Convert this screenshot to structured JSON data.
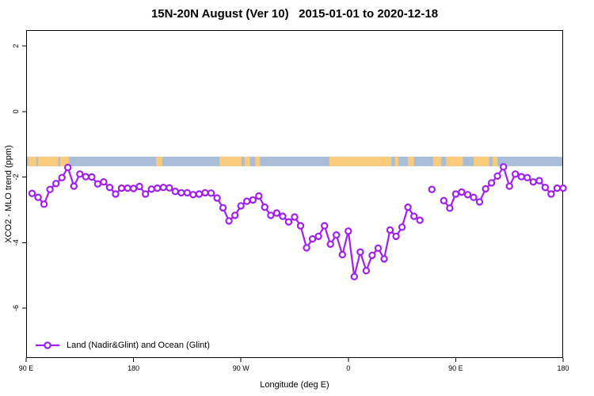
{
  "chart": {
    "title": "15N-20N August (Ver 10)   2015-01-01 to 2020-12-18",
    "xlabel": "Longitude (deg E)",
    "ylabel": "XCO2 - MLO trend (ppm)",
    "legend": {
      "label": "Land (Nadir&Glint) and Ocean (Glint)"
    }
  },
  "chart_data": {
    "type": "line",
    "title": "15N-20N August (Ver 10)   2015-01-01 to 2020-12-18",
    "xlabel": "Longitude (deg E)",
    "ylabel": "XCO2 - MLO trend (ppm)",
    "grid": false,
    "legend_position": "bottom-left-inside",
    "xlim_deg_east_unwrapped": [
      90,
      540
    ],
    "x_tick_positions": [
      90,
      180,
      270,
      360,
      450,
      540
    ],
    "x_tick_labels": [
      "90 E",
      "180",
      "90 W",
      "0",
      "90 E",
      "180"
    ],
    "ylim": [
      -7.5,
      2.5
    ],
    "y_tick_positions": [
      2,
      0,
      -2,
      -4,
      -6
    ],
    "y_tick_labels": [
      "2",
      "0",
      "-2",
      "-4",
      "-6"
    ],
    "series": [
      {
        "name": "Land (Nadir&Glint) and Ocean (Glint)",
        "color": "#A020F0",
        "marker": "open-circle",
        "x": [
          95,
          100,
          105,
          110,
          115,
          120,
          125,
          130,
          135,
          140,
          145,
          150,
          155,
          160,
          165,
          170,
          175,
          180,
          185,
          190,
          195,
          200,
          205,
          210,
          215,
          220,
          225,
          230,
          235,
          240,
          245,
          250,
          255,
          260,
          265,
          270,
          275,
          280,
          285,
          290,
          295,
          300,
          305,
          310,
          315,
          320,
          325,
          330,
          335,
          340,
          345,
          350,
          355,
          360,
          365,
          370,
          375,
          380,
          385,
          390,
          395,
          400,
          405,
          410,
          415,
          420,
          425,
          430,
          435,
          440,
          445,
          450,
          455,
          460,
          465,
          470,
          475,
          480,
          485,
          490,
          495,
          500,
          505,
          510,
          515,
          520,
          525,
          530,
          535,
          540
        ],
        "values": [
          -2.5,
          -2.62,
          -2.83,
          -2.38,
          -2.2,
          -2.02,
          -1.71,
          -2.28,
          -1.91,
          -1.99,
          -2.0,
          -2.21,
          -2.15,
          -2.32,
          -2.52,
          -2.34,
          -2.34,
          -2.35,
          -2.29,
          -2.52,
          -2.37,
          -2.34,
          -2.32,
          -2.33,
          -2.44,
          -2.48,
          -2.48,
          -2.54,
          -2.52,
          -2.48,
          -2.49,
          -2.64,
          -2.94,
          -3.34,
          -3.17,
          -2.88,
          -2.74,
          -2.7,
          -2.58,
          -2.92,
          -3.17,
          -3.1,
          -3.2,
          -3.37,
          -3.22,
          -3.49,
          -4.16,
          -3.89,
          -3.81,
          -3.49,
          -4.05,
          -3.77,
          -4.37,
          -3.65,
          -5.04,
          -4.29,
          -4.86,
          -4.39,
          -4.17,
          -4.5,
          -3.62,
          -3.81,
          -3.53,
          -2.92,
          -3.2,
          -3.32,
          null,
          -2.38,
          null,
          -2.72,
          -2.95,
          -2.52,
          -2.46,
          -2.54,
          -2.62,
          -2.76,
          -2.36,
          -2.18,
          -1.97,
          -1.69,
          -2.28,
          -1.91,
          -1.99,
          -2.02,
          -2.15,
          -2.11,
          -2.32,
          -2.52,
          -2.34,
          -2.34
        ]
      }
    ],
    "surface_type_band": {
      "y_top_ppm": -1.38,
      "y_bottom_ppm": -1.67,
      "ocean_color": "#A9BDD8",
      "land_color": "#F8CB7D",
      "land_segments_lon": [
        [
          91.5,
          98.5
        ],
        [
          100,
          117
        ],
        [
          118.5,
          126
        ],
        [
          199,
          204
        ],
        [
          252,
          270.5
        ],
        [
          273,
          277.5
        ],
        [
          282,
          286
        ],
        [
          344,
          396
        ],
        [
          399,
          402
        ],
        [
          410,
          415
        ],
        [
          431,
          438
        ],
        [
          442,
          456
        ],
        [
          465,
          478
        ],
        [
          481,
          485
        ]
      ]
    }
  }
}
